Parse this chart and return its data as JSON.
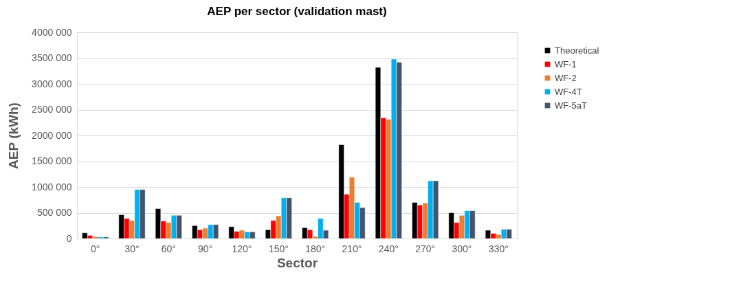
{
  "chart_data": {
    "type": "bar",
    "title": "AEP per sector (validation mast)",
    "xlabel": "Sector",
    "ylabel": "AEP (kWh)",
    "categories": [
      "0°",
      "30°",
      "60°",
      "90°",
      "120°",
      "150°",
      "180°",
      "210°",
      "240°",
      "270°",
      "300°",
      "330°"
    ],
    "series": [
      {
        "name": "Theoretical",
        "color": "#000000",
        "values": [
          110000,
          460000,
          580000,
          250000,
          230000,
          170000,
          210000,
          1820000,
          3320000,
          700000,
          500000,
          160000
        ]
      },
      {
        "name": "WF-1",
        "color": "#ff0000",
        "values": [
          60000,
          390000,
          340000,
          170000,
          140000,
          350000,
          170000,
          860000,
          2340000,
          650000,
          310000,
          100000
        ]
      },
      {
        "name": "WF-2",
        "color": "#ed7d31",
        "values": [
          40000,
          350000,
          310000,
          200000,
          160000,
          440000,
          40000,
          1190000,
          2310000,
          690000,
          450000,
          80000
        ]
      },
      {
        "name": "WF-4T",
        "color": "#00b0f0",
        "values": [
          30000,
          950000,
          450000,
          270000,
          130000,
          790000,
          390000,
          700000,
          3480000,
          1120000,
          540000,
          180000
        ]
      },
      {
        "name": "WF-5aT",
        "color": "#44546a",
        "values": [
          30000,
          950000,
          450000,
          270000,
          130000,
          790000,
          160000,
          600000,
          3420000,
          1120000,
          540000,
          180000
        ]
      }
    ],
    "ylim": [
      0,
      4000000
    ],
    "yticks": [
      0,
      {
        "value": 500000,
        "label": "500 000"
      },
      {
        "value": 1000000,
        "label": "1000 000"
      },
      {
        "value": 1500000,
        "label": "1500 000"
      },
      {
        "value": 2000000,
        "label": "2000 000"
      },
      {
        "value": 2500000,
        "label": "2500 000"
      },
      {
        "value": 3000000,
        "label": "3000 000"
      },
      {
        "value": 3500000,
        "label": "3500 000"
      },
      {
        "value": 4000000,
        "label": "4000 000"
      }
    ],
    "grid": "y",
    "legend": "right"
  }
}
